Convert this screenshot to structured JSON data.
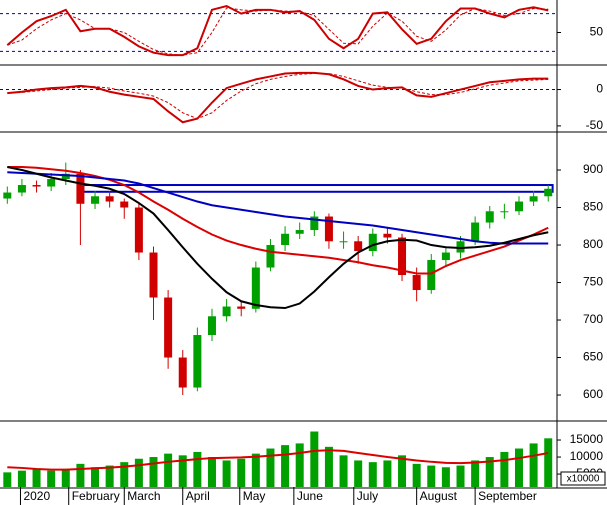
{
  "chart_data": [
    {
      "type": "line",
      "ylim": [
        0,
        100
      ],
      "yticks": [
        50
      ],
      "levels": [
        80,
        20
      ],
      "level_color": "#0000c0",
      "series": [
        {
          "color": "#cc0000",
          "dashed": false,
          "values": [
            30,
            50,
            68,
            76,
            86,
            52,
            56,
            56,
            43,
            28,
            18,
            14,
            14,
            25,
            86,
            92,
            80,
            86,
            86,
            82,
            84,
            70,
            40,
            25,
            40,
            80,
            82,
            55,
            32,
            40,
            68,
            88,
            88,
            80,
            74,
            86,
            90,
            85
          ]
        },
        {
          "color": "#cc0000",
          "dashed": true,
          "values": [
            30,
            38,
            56,
            70,
            80,
            70,
            56,
            56,
            50,
            36,
            23,
            16,
            14,
            18,
            50,
            89,
            86,
            84,
            86,
            84,
            83,
            77,
            55,
            33,
            32,
            60,
            81,
            68,
            44,
            36,
            54,
            78,
            88,
            84,
            77,
            80,
            88,
            87
          ]
        }
      ]
    },
    {
      "type": "line",
      "ylim": [
        -57,
        31
      ],
      "yticks": [
        0,
        -50
      ],
      "levels": [
        0
      ],
      "level_color": "#0000c0",
      "series": [
        {
          "color": "#cc0000",
          "dashed": false,
          "values": [
            -5,
            -3,
            0,
            2,
            3,
            5,
            3,
            -3,
            -7,
            -10,
            -13,
            -30,
            -45,
            -40,
            -18,
            2,
            8,
            14,
            18,
            22,
            23,
            23,
            21,
            14,
            5,
            0,
            2,
            3,
            -8,
            -10,
            -5,
            0,
            5,
            10,
            12,
            14,
            15,
            15
          ]
        },
        {
          "color": "#cc0000",
          "dashed": true,
          "values": [
            -5,
            -4,
            -2,
            0,
            2,
            3,
            4,
            2,
            -2,
            -5,
            -9,
            -18,
            -32,
            -40,
            -32,
            -15,
            -2,
            8,
            14,
            18,
            21,
            22,
            22,
            18,
            12,
            6,
            3,
            2,
            -3,
            -7,
            -7,
            -4,
            1,
            6,
            9,
            12,
            13,
            14
          ]
        }
      ]
    },
    {
      "type": "candlestick",
      "ylim": [
        566.7,
        946.7
      ],
      "yticks": [
        900,
        850,
        800,
        750,
        700,
        650,
        600
      ],
      "up_color": "#00a000",
      "down_color": "#d00000",
      "open": [
        862,
        870,
        880,
        878,
        888,
        895,
        855,
        865,
        858,
        850,
        790,
        730,
        650,
        610,
        680,
        705,
        718,
        715,
        770,
        800,
        815,
        820,
        838,
        805,
        805,
        792,
        815,
        810,
        760,
        740,
        780,
        790,
        805,
        830,
        845,
        845,
        858,
        865
      ],
      "high": [
        878,
        888,
        886,
        896,
        910,
        900,
        872,
        872,
        862,
        855,
        798,
        740,
        660,
        690,
        715,
        728,
        725,
        778,
        808,
        825,
        830,
        845,
        842,
        818,
        812,
        822,
        822,
        815,
        770,
        788,
        798,
        812,
        838,
        852,
        855,
        865,
        872,
        880
      ],
      "low": [
        855,
        865,
        870,
        872,
        880,
        800,
        848,
        850,
        835,
        780,
        700,
        635,
        600,
        605,
        672,
        698,
        705,
        710,
        765,
        792,
        808,
        812,
        795,
        795,
        775,
        785,
        802,
        752,
        725,
        735,
        772,
        782,
        800,
        822,
        835,
        840,
        852,
        858
      ],
      "close": [
        870,
        880,
        878,
        888,
        895,
        855,
        865,
        858,
        850,
        790,
        730,
        650,
        610,
        680,
        705,
        718,
        715,
        770,
        800,
        815,
        820,
        838,
        805,
        805,
        792,
        815,
        810,
        760,
        740,
        780,
        790,
        805,
        830,
        845,
        845,
        858,
        865,
        875
      ],
      "zone": {
        "x": [
          5.2,
          37.3
        ],
        "y": [
          871,
          880
        ],
        "color": "#0000c0"
      },
      "series": [
        {
          "color": "#dd0000",
          "values": [
            904,
            904,
            903,
            901,
            899,
            896,
            892,
            887,
            880,
            870,
            858,
            847,
            835,
            824,
            814,
            806,
            800,
            795,
            791,
            789,
            787,
            785,
            783,
            780,
            777,
            773,
            770,
            766,
            762,
            762,
            772,
            780,
            786,
            792,
            798,
            806,
            814,
            823
          ]
        },
        {
          "color": "#0000c0",
          "values": [
            897,
            896,
            895,
            894,
            893,
            892,
            890,
            888,
            886,
            882,
            876,
            870,
            864,
            858,
            853,
            850,
            847,
            844,
            841,
            838,
            836,
            834,
            832,
            830,
            828,
            826,
            823,
            820,
            817,
            814,
            811,
            808,
            805,
            803,
            802,
            802,
            802,
            802
          ]
        },
        {
          "color": "#000000",
          "values": [
            904,
            900,
            895,
            890,
            886,
            882,
            879,
            875,
            868,
            856,
            842,
            820,
            797,
            775,
            755,
            737,
            725,
            720,
            717,
            716,
            722,
            738,
            757,
            775,
            790,
            800,
            805,
            807,
            806,
            800,
            797,
            796,
            797,
            799,
            803,
            808,
            813,
            817
          ]
        }
      ]
    },
    {
      "type": "bar",
      "ylim": [
        1200,
        20000
      ],
      "yticks": [
        15000,
        10000,
        5000
      ],
      "unit_label": "x10000",
      "color": "#00a000",
      "values": [
        5500,
        6000,
        6500,
        6000,
        6500,
        8000,
        7000,
        7500,
        8500,
        9500,
        10000,
        11000,
        10500,
        11500,
        10000,
        9000,
        9500,
        11000,
        12500,
        13500,
        14000,
        17500,
        13000,
        10500,
        9000,
        8500,
        9000,
        10500,
        8000,
        7500,
        7000,
        7500,
        9000,
        10000,
        11500,
        12500,
        14000,
        15500
      ],
      "series": [
        {
          "color": "#dd0000",
          "values": [
            7000,
            6800,
            6500,
            6300,
            6300,
            6500,
            6700,
            6900,
            7200,
            7600,
            8100,
            8600,
            9000,
            9400,
            9700,
            9800,
            9900,
            10100,
            10400,
            10700,
            11200,
            11800,
            12000,
            11800,
            11200,
            10600,
            10000,
            9500,
            9000,
            8600,
            8300,
            8200,
            8400,
            8700,
            9100,
            9700,
            10400,
            11200
          ]
        }
      ],
      "xlim": [
        -0.5,
        37.6
      ],
      "xticks": [
        {
          "value": 0.9,
          "label": "2020"
        },
        {
          "value": 4.2,
          "label": "February"
        },
        {
          "value": 8,
          "label": "March"
        },
        {
          "value": 12,
          "label": "April"
        },
        {
          "value": 15.9,
          "label": "May"
        },
        {
          "value": 19.6,
          "label": "June"
        },
        {
          "value": 23.7,
          "label": "July"
        },
        {
          "value": 28,
          "label": "August"
        },
        {
          "value": 32,
          "label": "September"
        }
      ]
    }
  ]
}
